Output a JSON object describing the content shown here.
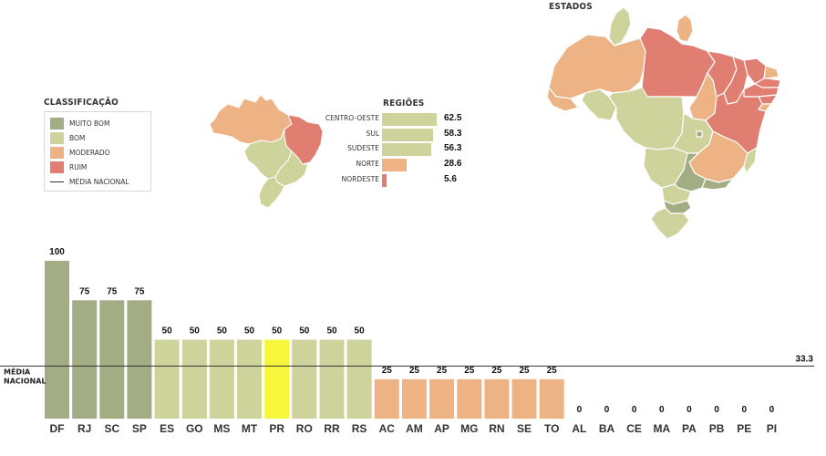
{
  "colors": {
    "muito_bom": "#a3ad83",
    "bom": "#cdd39b",
    "moderado": "#eeb384",
    "ruim": "#e07e72",
    "highlight": "#f6f63c",
    "line": "#333333"
  },
  "legend": {
    "title": "CLASSIFICAÇÃO",
    "items": [
      {
        "label": "MUITO BOM",
        "color": "#a3ad83"
      },
      {
        "label": "BOM",
        "color": "#cdd39b"
      },
      {
        "label": "MODERADO",
        "color": "#eeb384"
      },
      {
        "label": "RUIM",
        "color": "#e07e72"
      }
    ],
    "line_label": "MÉDIA NACIONAL"
  },
  "maps": {
    "estados_title": "ESTADOS",
    "regioes_title": "REGIÕES"
  },
  "chart_data": [
    {
      "type": "bar",
      "title": "REGIÕES",
      "orientation": "horizontal",
      "categories": [
        "CENTRO-OESTE",
        "SUL",
        "SUDESTE",
        "NORTE",
        "NORDESTE"
      ],
      "values": [
        62.5,
        58.3,
        56.3,
        28.6,
        5.6
      ],
      "value_labels": [
        "62.5",
        "58.3",
        "56.3",
        "28.6",
        "5.6"
      ],
      "colors": [
        "#cdd39b",
        "#cdd39b",
        "#cdd39b",
        "#eeb384",
        "#e07e72"
      ],
      "xlim": [
        0,
        100
      ]
    },
    {
      "type": "bar",
      "title": "",
      "categories": [
        "DF",
        "RJ",
        "SC",
        "SP",
        "ES",
        "GO",
        "MS",
        "MT",
        "PR",
        "RO",
        "RR",
        "RS",
        "AC",
        "AM",
        "AP",
        "MG",
        "RN",
        "SE",
        "TO",
        "AL",
        "BA",
        "CE",
        "MA",
        "PA",
        "PB",
        "PE",
        "PI"
      ],
      "values": [
        100,
        75,
        75,
        75,
        50,
        50,
        50,
        50,
        50,
        50,
        50,
        50,
        25,
        25,
        25,
        25,
        25,
        25,
        25,
        0,
        0,
        0,
        0,
        0,
        0,
        0,
        0
      ],
      "classes": [
        "muito_bom",
        "muito_bom",
        "muito_bom",
        "muito_bom",
        "bom",
        "bom",
        "bom",
        "bom",
        "highlight",
        "bom",
        "bom",
        "bom",
        "moderado",
        "moderado",
        "moderado",
        "moderado",
        "moderado",
        "moderado",
        "moderado",
        "ruim",
        "ruim",
        "ruim",
        "ruim",
        "ruim",
        "ruim",
        "ruim",
        "ruim"
      ],
      "ylim": [
        0,
        100
      ],
      "reference_line": {
        "label_lines": [
          "MÉDIA",
          "NACIONAL"
        ],
        "value": 33.3,
        "value_label": "33.3"
      },
      "grid": false,
      "legend": "left"
    }
  ]
}
